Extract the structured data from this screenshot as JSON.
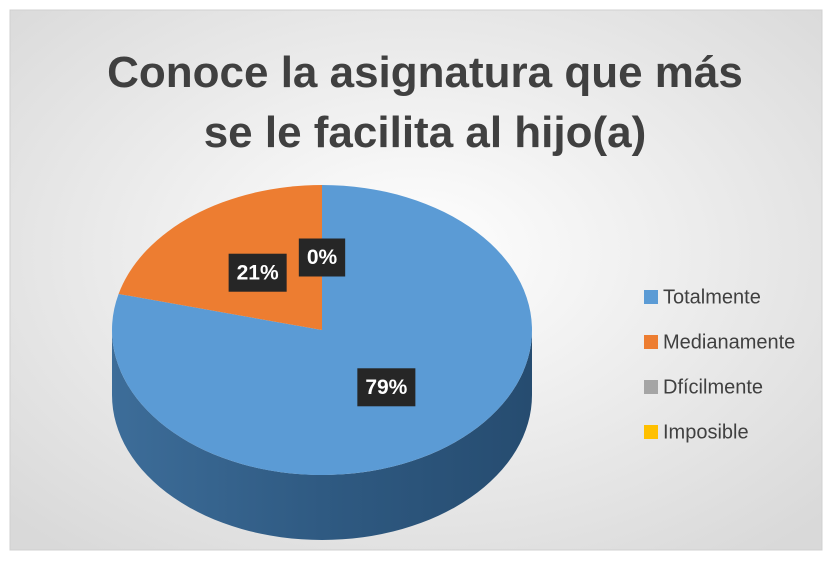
{
  "chart_data": {
    "type": "pie",
    "title": "Conoce la asignatura que más se le facilita al hijo(a)",
    "categories": [
      "Totalmente",
      "Medianamente",
      "Dfícilmente",
      "Imposible"
    ],
    "values": [
      79,
      21,
      0,
      0
    ],
    "value_labels": [
      "79%",
      "21%",
      "0%",
      null
    ],
    "colors": [
      "#5b9bd5",
      "#ed7d31",
      "#a5a5a5",
      "#ffc000"
    ],
    "legend": "right"
  }
}
